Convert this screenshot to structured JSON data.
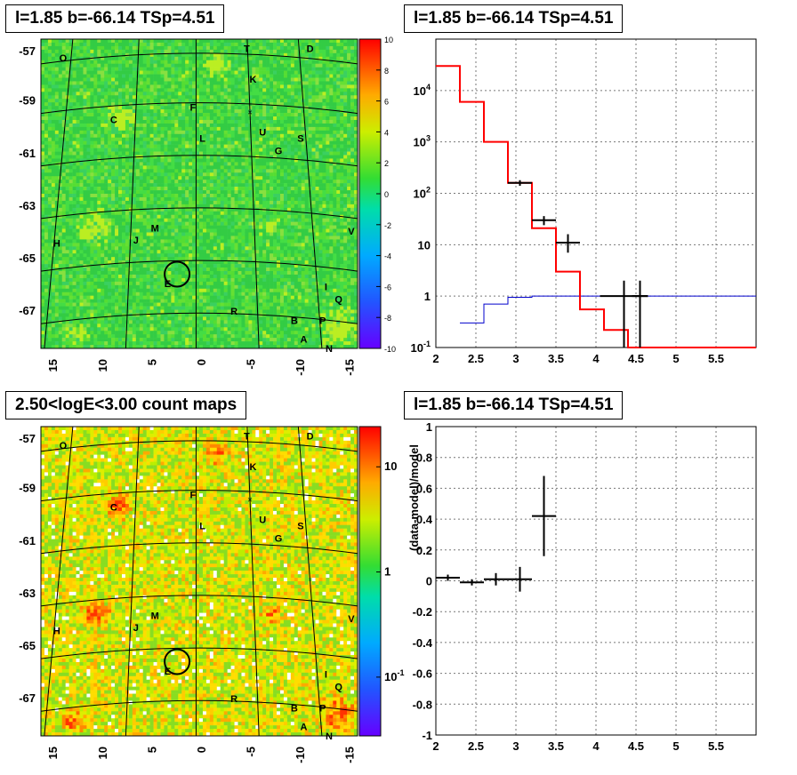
{
  "titles": {
    "map_top": "l=1.85 b=-66.14 TSp=4.51",
    "spectrum": "l=1.85 b=-66.14 TSp=4.51",
    "map_bottom": "2.50<logE<3.00 count maps",
    "residual": "l=1.85 b=-66.14 TSp=4.51"
  },
  "colors": {
    "model": "#ff0000",
    "source": "#0000cc",
    "data": "#000000"
  },
  "chart_data": [
    {
      "type": "heatmap",
      "name": "ts-map",
      "x_ticks": [
        "15",
        "10",
        "5",
        "0",
        "-5",
        "-10",
        "-15"
      ],
      "y_ticks": [
        "-57",
        "-59",
        "-61",
        "-63",
        "-65",
        "-67"
      ],
      "colorbar_ticks": [
        "10",
        "8",
        "6",
        "4",
        "2",
        "0",
        "-2",
        "-4",
        "-6",
        "-8",
        "-10"
      ],
      "zlim": [
        -10,
        10
      ],
      "source_labels": [
        "O",
        "T",
        "D",
        "K",
        "C",
        "F",
        "L",
        "U",
        "S",
        "G",
        "M",
        "J",
        "H",
        "V",
        "I",
        "Q",
        "E",
        "R",
        "B",
        "P",
        "A",
        "N"
      ]
    },
    {
      "type": "line",
      "name": "spectrum",
      "xlim": [
        2,
        6
      ],
      "ylim_log": [
        0.1,
        100000
      ],
      "x_ticks": [
        "2",
        "2.5",
        "3",
        "3.5",
        "4",
        "4.5",
        "5",
        "5.5"
      ],
      "y_ticks": [
        "10^-1",
        "1",
        "10",
        "10^2",
        "10^3",
        "10^4"
      ],
      "model_steps": {
        "edges": [
          2.0,
          2.3,
          2.6,
          2.9,
          3.2,
          3.5,
          3.8,
          4.1,
          4.4,
          6.0
        ],
        "values": [
          30000,
          6000,
          1000,
          160,
          21,
          3,
          0.55,
          0.22,
          0.1
        ]
      },
      "source_steps": {
        "edges": [
          2.3,
          2.6,
          2.9,
          3.2,
          3.5,
          6.0
        ],
        "values": [
          0.3,
          0.7,
          0.95,
          1.0,
          1.0
        ]
      },
      "data_points": [
        {
          "x": 3.05,
          "xerr": 0.15,
          "y": 160,
          "ylo": 140,
          "yhi": 180
        },
        {
          "x": 3.35,
          "xerr": 0.15,
          "y": 30,
          "ylo": 24,
          "yhi": 36
        },
        {
          "x": 3.65,
          "xerr": 0.15,
          "y": 11,
          "ylo": 7,
          "yhi": 16
        },
        {
          "x": 4.35,
          "xerr": 0.3,
          "y": 1,
          "ylo": 0.1,
          "yhi": 2
        },
        {
          "x": 4.55,
          "xerr": 0.1,
          "y": 1,
          "ylo": 0.1,
          "yhi": 2
        }
      ]
    },
    {
      "type": "heatmap",
      "name": "count-map",
      "x_ticks": [
        "15",
        "10",
        "5",
        "0",
        "-5",
        "-10",
        "-15"
      ],
      "y_ticks": [
        "-57",
        "-59",
        "-61",
        "-63",
        "-65",
        "-67"
      ],
      "colorbar_ticks": [
        "10",
        "1",
        "10^-1"
      ],
      "zlim_log": [
        0.03,
        30
      ],
      "source_labels": [
        "O",
        "T",
        "D",
        "K",
        "C",
        "F",
        "L",
        "U",
        "S",
        "G",
        "M",
        "J",
        "H",
        "V",
        "I",
        "Q",
        "E",
        "R",
        "B",
        "P",
        "A",
        "N"
      ]
    },
    {
      "type": "scatter",
      "name": "residual",
      "xlim": [
        2,
        6
      ],
      "ylim": [
        -1,
        1
      ],
      "ylabel": "(data-model)/model",
      "x_ticks": [
        "2",
        "2.5",
        "3",
        "3.5",
        "4",
        "4.5",
        "5",
        "5.5"
      ],
      "y_ticks": [
        "1",
        "0.8",
        "0.6",
        "0.4",
        "0.2",
        "0",
        "-0.2",
        "-0.4",
        "-0.6",
        "-0.8",
        "-1"
      ],
      "data_points": [
        {
          "x": 2.15,
          "xerr": 0.15,
          "y": 0.02,
          "err": 0.02
        },
        {
          "x": 2.45,
          "xerr": 0.15,
          "y": -0.01,
          "err": 0.02
        },
        {
          "x": 2.75,
          "xerr": 0.15,
          "y": 0.01,
          "err": 0.04
        },
        {
          "x": 3.05,
          "xerr": 0.15,
          "y": 0.01,
          "err": 0.08
        },
        {
          "x": 3.35,
          "xerr": 0.15,
          "y": 0.42,
          "err": 0.26
        }
      ]
    }
  ]
}
